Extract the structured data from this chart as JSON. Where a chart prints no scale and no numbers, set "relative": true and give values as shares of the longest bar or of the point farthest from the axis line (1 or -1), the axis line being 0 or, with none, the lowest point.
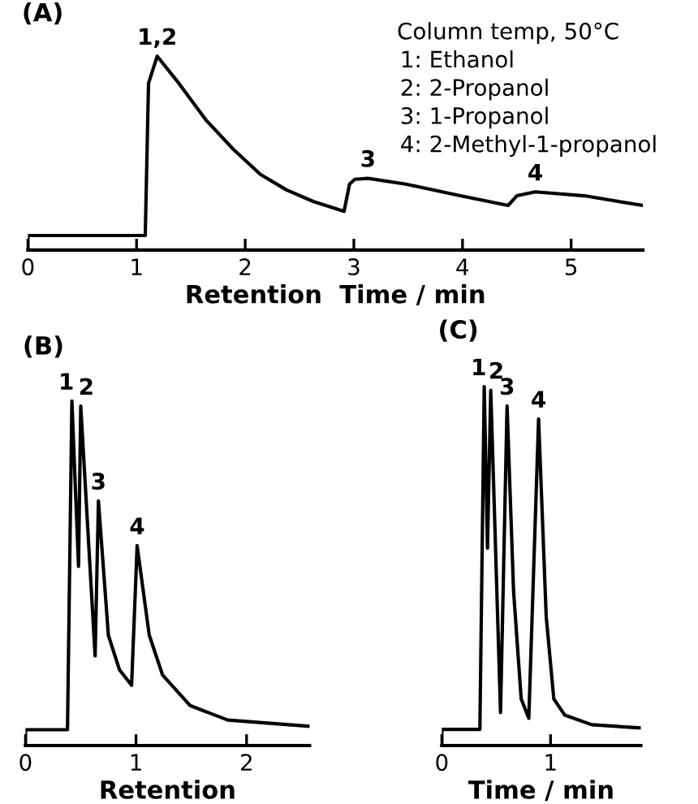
{
  "chart_data": [
    {
      "type": "line",
      "title": "(A)",
      "xlabel": "Retention  Time / min",
      "relative": true,
      "tick_labels": "x",
      "xlim": [
        0,
        5.66
      ],
      "xticks": [
        0,
        1,
        2,
        3,
        4,
        5
      ],
      "series": [
        {
          "color": "#000000",
          "x": [
            0,
            0,
            1.08,
            1.11,
            1.19,
            1.39,
            1.64,
            1.89,
            2.14,
            2.38,
            2.63,
            2.91,
            2.96,
            3.01,
            3.13,
            3.48,
            3.98,
            4.42,
            4.5,
            4.67,
            5.12,
            5.66
          ],
          "values": [
            0,
            0.075,
            0.075,
            0.86,
            1.0,
            0.86,
            0.67,
            0.52,
            0.39,
            0.31,
            0.25,
            0.2,
            0.34,
            0.365,
            0.37,
            0.34,
            0.28,
            0.23,
            0.28,
            0.3,
            0.28,
            0.23
          ]
        }
      ],
      "annotations": [
        {
          "text": "1,2",
          "x": 1.19,
          "y": 1.0
        },
        {
          "text": "3",
          "x": 3.13,
          "y": 0.37
        },
        {
          "text": "4",
          "x": 4.67,
          "y": 0.3
        },
        "Column temp, 50°C",
        "1: Ethanol",
        "2: 2-Propanol",
        "3: 1-Propanol",
        "4: 2-Methyl-1-propanol"
      ]
    },
    {
      "type": "line",
      "title": "(B)",
      "xlabel": "Retention",
      "relative": true,
      "tick_labels": "x",
      "xlim": [
        0,
        2.57
      ],
      "xticks": [
        0,
        1,
        2
      ],
      "series": [
        {
          "color": "#000000",
          "x": [
            0,
            0,
            0.38,
            0.42,
            0.48,
            0.5,
            0.63,
            0.66,
            0.75,
            0.85,
            0.96,
            1.01,
            1.12,
            1.24,
            1.49,
            1.83,
            2.57
          ],
          "values": [
            0,
            0.046,
            0.046,
            1.0,
            0.52,
            0.985,
            0.26,
            0.71,
            0.32,
            0.22,
            0.175,
            0.58,
            0.32,
            0.205,
            0.116,
            0.074,
            0.056
          ]
        }
      ],
      "annotations": [
        {
          "text": "1",
          "x": 0.42,
          "y": 1.0
        },
        {
          "text": "2",
          "x": 0.5,
          "y": 0.985
        },
        {
          "text": "3",
          "x": 0.66,
          "y": 0.71
        },
        {
          "text": "4",
          "x": 1.01,
          "y": 0.58
        }
      ]
    },
    {
      "type": "line",
      "title": "(C)",
      "xlabel": "Time / min",
      "relative": true,
      "tick_labels": "x",
      "xlim": [
        0,
        1.83
      ],
      "xticks": [
        0,
        1
      ],
      "series": [
        {
          "color": "#000000",
          "x": [
            0,
            0,
            0.35,
            0.39,
            0.42,
            0.45,
            0.54,
            0.6,
            0.66,
            0.73,
            0.8,
            0.89,
            0.96,
            1.03,
            1.13,
            1.38,
            1.83
          ],
          "values": [
            0,
            0.045,
            0.045,
            1.0,
            0.55,
            0.99,
            0.092,
            0.946,
            0.43,
            0.13,
            0.076,
            0.91,
            0.36,
            0.13,
            0.085,
            0.058,
            0.049
          ]
        }
      ],
      "annotations": [
        {
          "text": "1",
          "x": 0.39,
          "y": 1.0
        },
        {
          "text": "2",
          "x": 0.45,
          "y": 0.99
        },
        {
          "text": "3",
          "x": 0.6,
          "y": 0.946
        },
        {
          "text": "4",
          "x": 0.89,
          "y": 0.91
        }
      ]
    }
  ]
}
